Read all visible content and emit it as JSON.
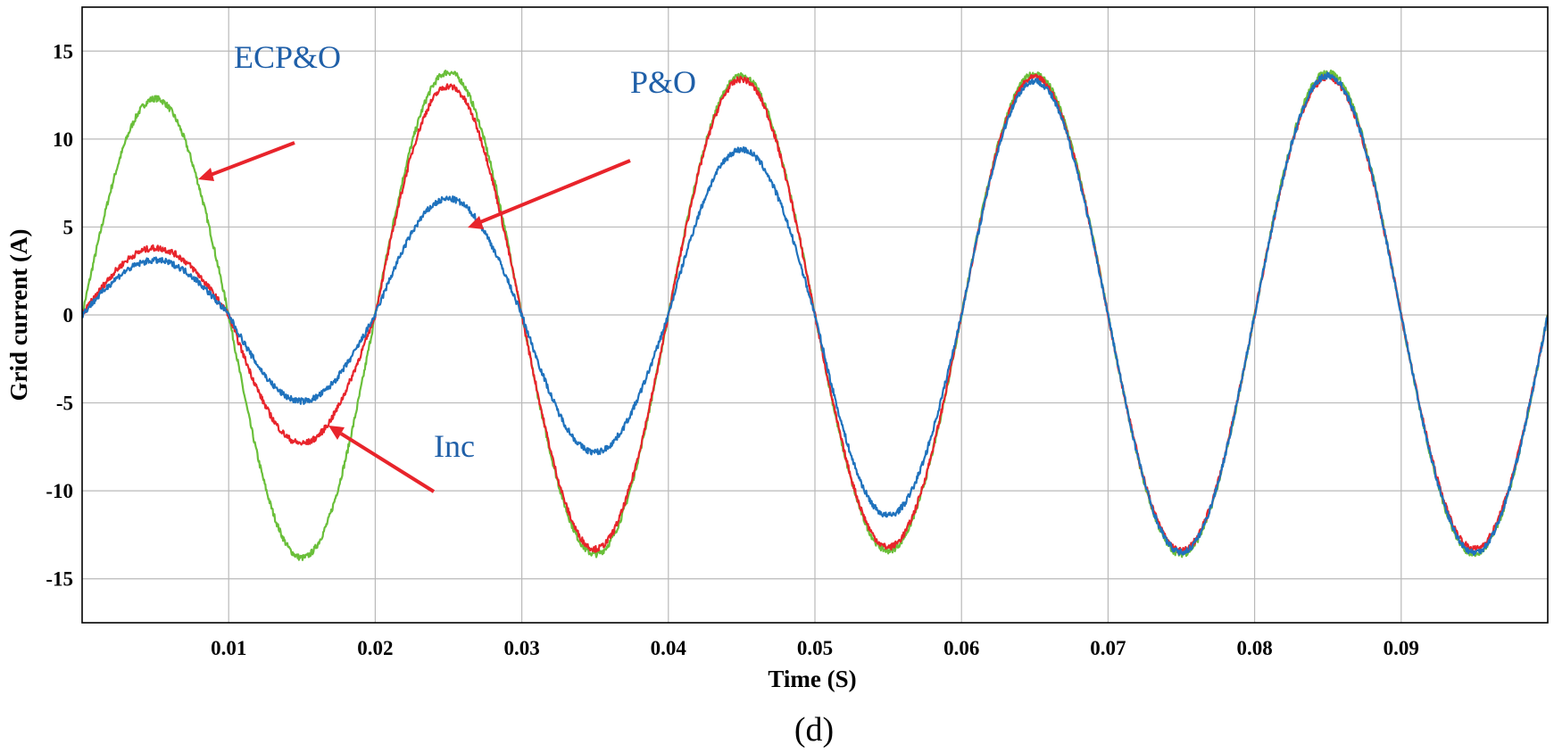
{
  "chart_data": {
    "type": "line",
    "title": "",
    "caption": "(d)",
    "xlabel": "Time (S)",
    "ylabel": "Grid current (A)",
    "xlim": [
      0,
      0.1
    ],
    "ylim": [
      -17.5,
      17.5
    ],
    "xticks": [
      0.01,
      0.02,
      0.03,
      0.04,
      0.05,
      0.06,
      0.07,
      0.08,
      0.09
    ],
    "xtick_labels": [
      "0.01",
      "0.02",
      "0.03",
      "0.04",
      "0.05",
      "0.06",
      "0.07",
      "0.08",
      "0.09"
    ],
    "yticks": [
      15,
      10,
      5,
      0,
      -5,
      -10,
      -15
    ],
    "ytick_labels": [
      "15",
      "10",
      "5",
      "0",
      "-5",
      "-10",
      "-15"
    ],
    "grid": true,
    "frequency_hz": 50,
    "series": [
      {
        "name": "ECP&O",
        "color": "#6abf3a",
        "peak_times": [
          0.005,
          0.015,
          0.025,
          0.035,
          0.045,
          0.055,
          0.065,
          0.075,
          0.085,
          0.095
        ],
        "peak_values": [
          12.3,
          -13.8,
          13.8,
          -13.6,
          13.6,
          -13.4,
          13.7,
          -13.6,
          13.8,
          -13.6
        ]
      },
      {
        "name": "Inc",
        "color": "#e8242b",
        "peak_times": [
          0.005,
          0.015,
          0.025,
          0.035,
          0.045,
          0.055,
          0.065,
          0.075,
          0.085,
          0.095
        ],
        "peak_values": [
          3.8,
          -7.3,
          13.0,
          -13.3,
          13.4,
          -13.2,
          13.5,
          -13.4,
          13.5,
          -13.3
        ]
      },
      {
        "name": "P&O",
        "color": "#1f72bd",
        "peak_times": [
          0.005,
          0.015,
          0.025,
          0.035,
          0.045,
          0.055,
          0.065,
          0.075,
          0.085,
          0.095
        ],
        "peak_values": [
          3.1,
          -4.9,
          6.6,
          -7.8,
          9.4,
          -11.4,
          13.3,
          -13.5,
          13.6,
          -13.5
        ]
      }
    ],
    "annotations": [
      {
        "text": "ECP&O",
        "points_to": "ECP&O",
        "arrow_target": [
          0.008,
          7.8
        ]
      },
      {
        "text": "P&O",
        "points_to": "P&O",
        "arrow_target": [
          0.0265,
          5.0
        ]
      },
      {
        "text": "Inc",
        "points_to": "Inc",
        "arrow_target": [
          0.0173,
          -6.5
        ]
      }
    ]
  }
}
